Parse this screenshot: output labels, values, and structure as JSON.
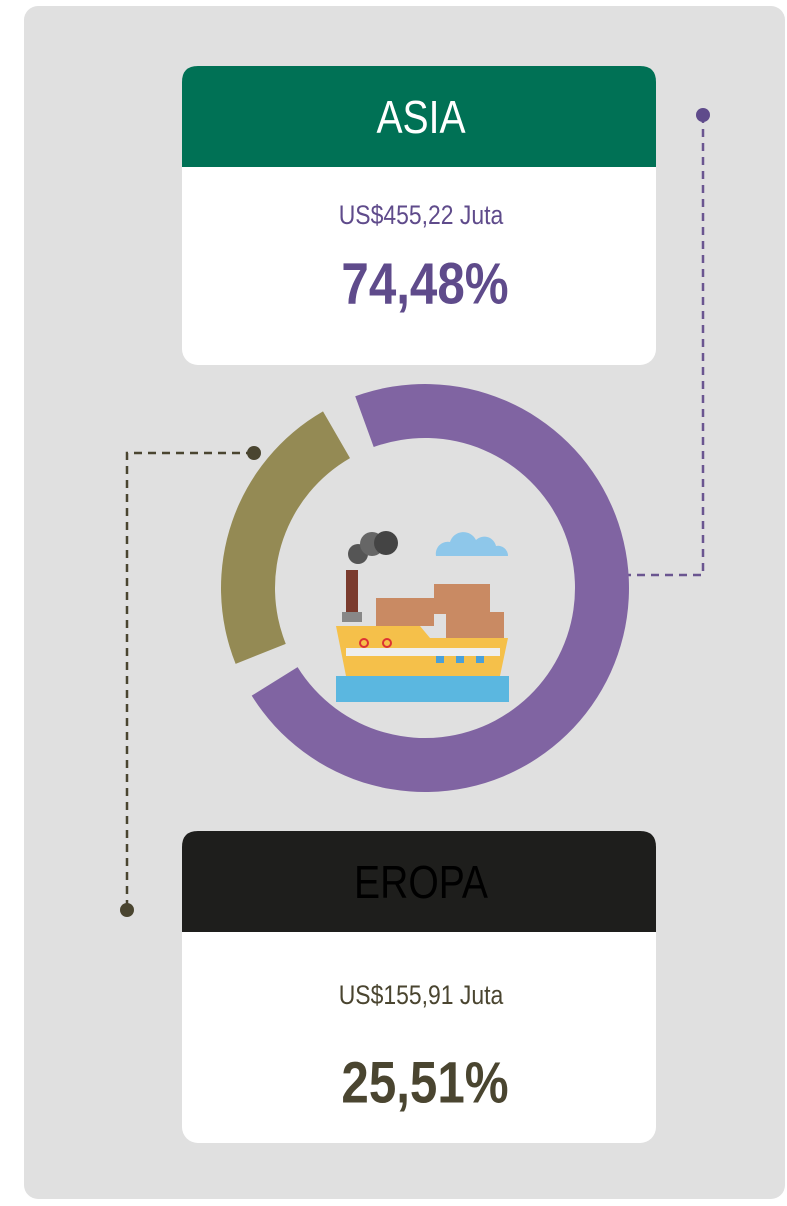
{
  "chart_data": {
    "type": "donut",
    "categories": [
      "ASIA",
      "EROPA"
    ],
    "values": [
      74.48,
      25.51
    ],
    "value_labels": [
      "74,48%",
      "25,51%"
    ],
    "amounts": [
      455.22,
      155.91
    ],
    "amount_labels": [
      "US$455,22 Juta",
      "US$155,91 Juta"
    ],
    "colors": [
      "#8064a2",
      "#948a54"
    ],
    "header_colors": [
      "#007155",
      "#1e1e1c"
    ],
    "header_text_colors": [
      "#ffffff",
      "#000000"
    ],
    "text_colors": [
      "#5f4b8b",
      "#4a4530"
    ]
  }
}
